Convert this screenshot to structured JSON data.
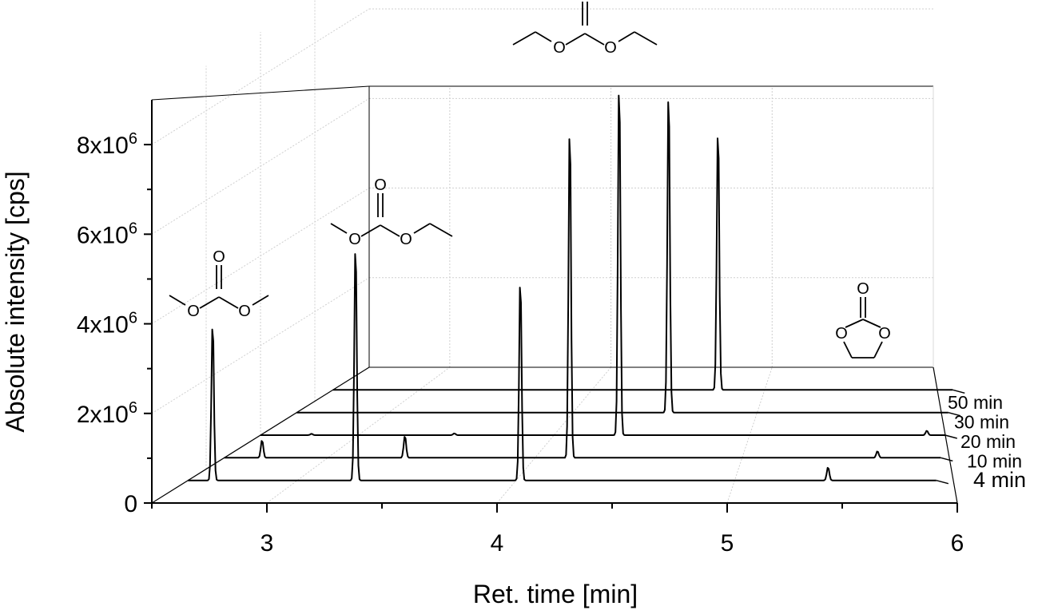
{
  "chart_data": {
    "type": "line",
    "subtype": "3d-waterfall",
    "xlabel": "Ret. time [min]",
    "ylabel": "Absolute intensity [cps]",
    "xlim": [
      2.5,
      6
    ],
    "ylim": [
      0,
      9000000
    ],
    "x_ticks": [
      {
        "value": 3,
        "label": "3"
      },
      {
        "value": 4,
        "label": "4"
      },
      {
        "value": 5,
        "label": "5"
      },
      {
        "value": 6,
        "label": "6"
      }
    ],
    "y_ticks": [
      {
        "value": 0,
        "label": "0",
        "exp": ""
      },
      {
        "value": 2000000,
        "label": "2x10",
        "exp": "6"
      },
      {
        "value": 4000000,
        "label": "4x10",
        "exp": "6"
      },
      {
        "value": 6000000,
        "label": "6x10",
        "exp": "6"
      },
      {
        "value": 8000000,
        "label": "8x10",
        "exp": "6"
      }
    ],
    "grid": true,
    "series": [
      {
        "name": "4 min",
        "peaks": [
          {
            "x": 2.8,
            "y": 3600000
          },
          {
            "x": 3.45,
            "y": 5400000
          },
          {
            "x": 4.2,
            "y": 4600000
          },
          {
            "x": 5.6,
            "y": 300000
          }
        ]
      },
      {
        "name": "10 min",
        "peaks": [
          {
            "x": 2.8,
            "y": 400000
          },
          {
            "x": 3.45,
            "y": 500000
          },
          {
            "x": 4.2,
            "y": 7600000
          },
          {
            "x": 5.6,
            "y": 150000
          }
        ]
      },
      {
        "name": "20 min",
        "peaks": [
          {
            "x": 2.8,
            "y": 30000
          },
          {
            "x": 3.45,
            "y": 40000
          },
          {
            "x": 4.2,
            "y": 8100000
          },
          {
            "x": 5.6,
            "y": 100000
          }
        ]
      },
      {
        "name": "30 min",
        "peaks": [
          {
            "x": 4.2,
            "y": 7400000
          },
          {
            "x": 5.6,
            "y": 60000
          }
        ]
      },
      {
        "name": "50 min",
        "peaks": [
          {
            "x": 4.2,
            "y": 6000000
          },
          {
            "x": 5.6,
            "y": 130000
          }
        ]
      }
    ],
    "annotations": [
      {
        "label": "O",
        "near_x": 2.8,
        "series": "4 min"
      },
      {
        "label": "O",
        "near_x": 3.45,
        "series": "4 min"
      },
      {
        "label": "O",
        "near_x": 4.2,
        "series": "20 min"
      },
      {
        "label": "O",
        "near_x": 5.6,
        "series": "50 min"
      }
    ]
  }
}
